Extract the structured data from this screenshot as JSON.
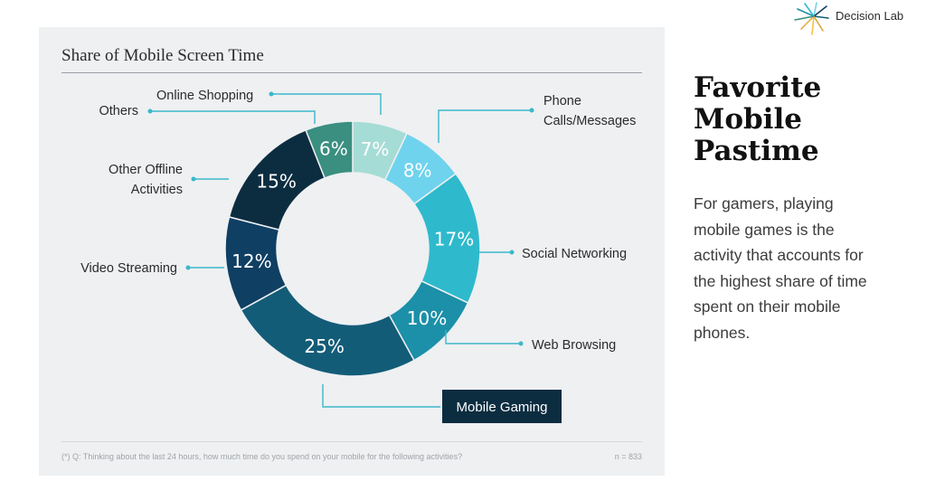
{
  "logo": {
    "text": "Decision Lab",
    "icon": "burst-icon"
  },
  "sidebar": {
    "title_lines": [
      "Favorite",
      "Mobile",
      "Pastime"
    ],
    "body_lines": [
      "For gamers, playing",
      "mobile games is the",
      "activity that accounts for",
      "the highest share of time",
      "spent on their mobile",
      "phones."
    ]
  },
  "footnote": "(*) Q: Thinking about the last 24 hours, how much time do you spend on your mobile for the following activities?",
  "sample_size": "n = 833",
  "chart_data": {
    "type": "pie",
    "donut": true,
    "title": "Share of Mobile Screen Time",
    "unit": "%",
    "highlight": "Mobile Gaming",
    "slices": [
      {
        "label": "Online Shopping",
        "value": 7,
        "value_label": "7%",
        "color": "#a6dcd6"
      },
      {
        "label": "Phone Calls/Messages",
        "value": 8,
        "value_label": "8%",
        "color": "#6fd3ee"
      },
      {
        "label": "Social Networking",
        "value": 17,
        "value_label": "17%",
        "color": "#2fb9cc"
      },
      {
        "label": "Web Browsing",
        "value": 10,
        "value_label": "10%",
        "color": "#1b90a8"
      },
      {
        "label": "Mobile Gaming",
        "value": 25,
        "value_label": "25%",
        "color": "#135c78"
      },
      {
        "label": "Video Streaming",
        "value": 12,
        "value_label": "12%",
        "color": "#0f3f63"
      },
      {
        "label": "Other Offline Activities",
        "value": 15,
        "value_label": "15%",
        "color": "#0c2d40"
      },
      {
        "label": "Others",
        "value": 6,
        "value_label": "6%",
        "color": "#3a8f80"
      }
    ]
  }
}
